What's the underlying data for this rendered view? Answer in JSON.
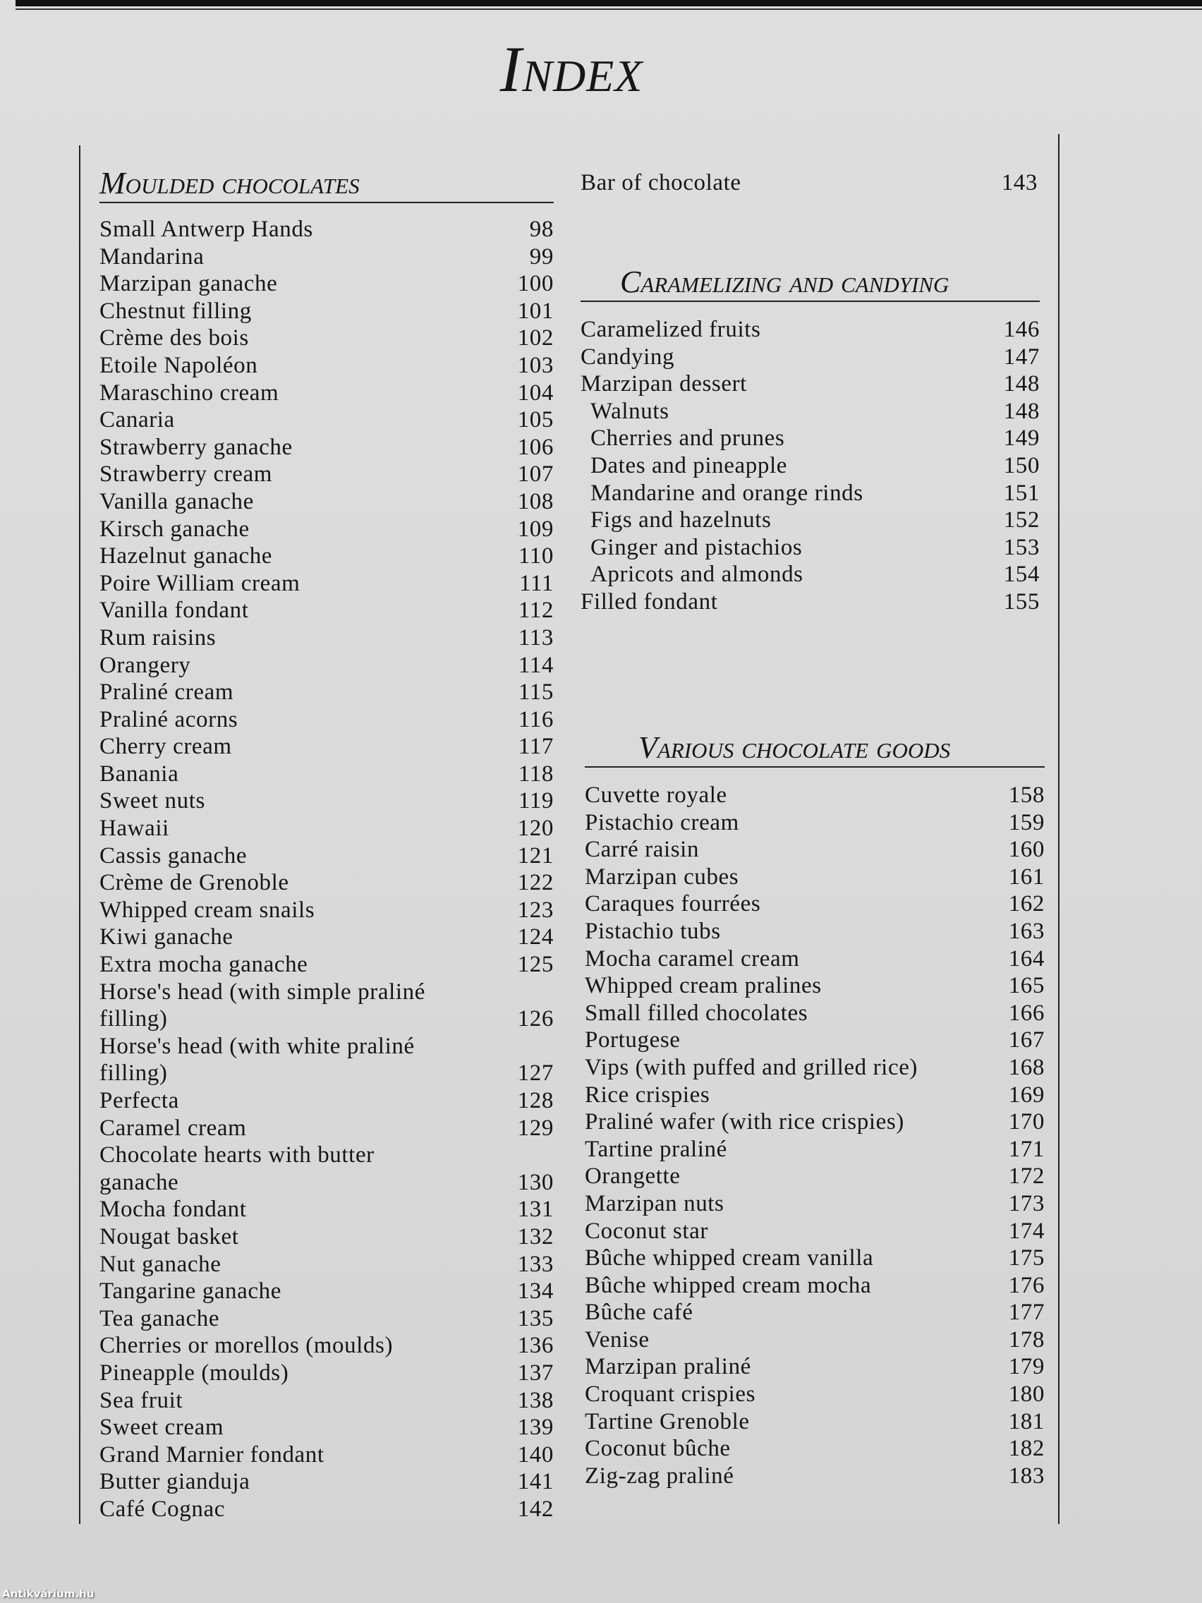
{
  "title": "Index",
  "watermark": "Antikvárium.hu",
  "left": {
    "heading": "Moulded chocolates",
    "items": [
      {
        "name": "Small Antwerp Hands",
        "page": "98"
      },
      {
        "name": "Mandarina",
        "page": "99"
      },
      {
        "name": "Marzipan ganache",
        "page": "100"
      },
      {
        "name": "Chestnut filling",
        "page": "101"
      },
      {
        "name": "Crème des bois",
        "page": "102"
      },
      {
        "name": "Etoile Napoléon",
        "page": "103"
      },
      {
        "name": "Maraschino cream",
        "page": "104"
      },
      {
        "name": "Canaria",
        "page": "105"
      },
      {
        "name": "Strawberry ganache",
        "page": "106"
      },
      {
        "name": "Strawberry cream",
        "page": "107"
      },
      {
        "name": "Vanilla ganache",
        "page": "108"
      },
      {
        "name": "Kirsch ganache",
        "page": "109"
      },
      {
        "name": "Hazelnut ganache",
        "page": "110"
      },
      {
        "name": "Poire William cream",
        "page": "111"
      },
      {
        "name": "Vanilla fondant",
        "page": "112"
      },
      {
        "name": "Rum raisins",
        "page": "113"
      },
      {
        "name": "Orangery",
        "page": "114"
      },
      {
        "name": "Praliné cream",
        "page": "115"
      },
      {
        "name": "Praliné acorns",
        "page": "116"
      },
      {
        "name": "Cherry cream",
        "page": "117"
      },
      {
        "name": "Banania",
        "page": "118"
      },
      {
        "name": "Sweet nuts",
        "page": "119"
      },
      {
        "name": "Hawaii",
        "page": "120"
      },
      {
        "name": "Cassis ganache",
        "page": "121"
      },
      {
        "name": "Crème de Grenoble",
        "page": "122"
      },
      {
        "name": "Whipped cream snails",
        "page": "123"
      },
      {
        "name": "Kiwi ganache",
        "page": "124"
      },
      {
        "name": "Extra mocha ganache",
        "page": "125"
      },
      {
        "name": "Horse's head (with simple praliné\nfilling)",
        "page": "126"
      },
      {
        "name": "Horse's head (with white praliné\nfilling)",
        "page": "127"
      },
      {
        "name": "Perfecta",
        "page": "128"
      },
      {
        "name": "Caramel cream",
        "page": "129"
      },
      {
        "name": "Chocolate hearts with butter\nganache",
        "page": "130"
      },
      {
        "name": "Mocha fondant",
        "page": "131"
      },
      {
        "name": "Nougat basket",
        "page": "132"
      },
      {
        "name": "Nut ganache",
        "page": "133"
      },
      {
        "name": "Tangarine ganache",
        "page": "134"
      },
      {
        "name": "Tea ganache",
        "page": "135"
      },
      {
        "name": "Cherries or morellos (moulds)",
        "page": "136"
      },
      {
        "name": "Pineapple (moulds)",
        "page": "137"
      },
      {
        "name": "Sea fruit",
        "page": "138"
      },
      {
        "name": "Sweet cream",
        "page": "139"
      },
      {
        "name": "Grand Marnier fondant",
        "page": "140"
      },
      {
        "name": "Butter gianduja",
        "page": "141"
      },
      {
        "name": "Café Cognac",
        "page": "142"
      }
    ]
  },
  "right_top": {
    "name": "Bar of chocolate",
    "page": "143"
  },
  "caramelizing": {
    "heading": "Caramelizing and candying",
    "items": [
      {
        "name": "Caramelized fruits",
        "page": "146"
      },
      {
        "name": "Candying",
        "page": "147"
      },
      {
        "name": "Marzipan dessert",
        "page": "148"
      },
      {
        "name": "Walnuts",
        "page": "148",
        "indent": true
      },
      {
        "name": "Cherries and prunes",
        "page": "149",
        "indent": true
      },
      {
        "name": "Dates and pineapple",
        "page": "150",
        "indent": true
      },
      {
        "name": "Mandarine and orange rinds",
        "page": "151",
        "indent": true
      },
      {
        "name": "Figs and hazelnuts",
        "page": "152",
        "indent": true
      },
      {
        "name": "Ginger and pistachios",
        "page": "153",
        "indent": true
      },
      {
        "name": "Apricots and almonds",
        "page": "154",
        "indent": true
      },
      {
        "name": "Filled fondant",
        "page": "155"
      }
    ]
  },
  "various": {
    "heading": "Various chocolate goods",
    "items": [
      {
        "name": "Cuvette royale",
        "page": "158"
      },
      {
        "name": "Pistachio cream",
        "page": "159"
      },
      {
        "name": "Carré raisin",
        "page": "160"
      },
      {
        "name": "Marzipan cubes",
        "page": "161"
      },
      {
        "name": "Caraques fourrées",
        "page": "162"
      },
      {
        "name": "Pistachio tubs",
        "page": "163"
      },
      {
        "name": "Mocha caramel cream",
        "page": "164"
      },
      {
        "name": "Whipped cream pralines",
        "page": "165"
      },
      {
        "name": "Small filled chocolates",
        "page": "166"
      },
      {
        "name": "Portugese",
        "page": "167"
      },
      {
        "name": "Vips (with puffed and grilled rice)",
        "page": "168"
      },
      {
        "name": "Rice crispies",
        "page": "169"
      },
      {
        "name": "Praliné wafer (with rice crispies)",
        "page": "170"
      },
      {
        "name": "Tartine praliné",
        "page": "171"
      },
      {
        "name": "Orangette",
        "page": "172"
      },
      {
        "name": "Marzipan nuts",
        "page": "173"
      },
      {
        "name": "Coconut star",
        "page": "174"
      },
      {
        "name": "Bûche whipped cream vanilla",
        "page": "175"
      },
      {
        "name": "Bûche whipped cream mocha",
        "page": "176"
      },
      {
        "name": "Bûche café",
        "page": "177"
      },
      {
        "name": "Venise",
        "page": "178"
      },
      {
        "name": "Marzipan praliné",
        "page": "179"
      },
      {
        "name": "Croquant crispies",
        "page": "180"
      },
      {
        "name": "Tartine Grenoble",
        "page": "181"
      },
      {
        "name": "Coconut bûche",
        "page": "182"
      },
      {
        "name": "Zig-zag praliné",
        "page": "183"
      }
    ]
  }
}
